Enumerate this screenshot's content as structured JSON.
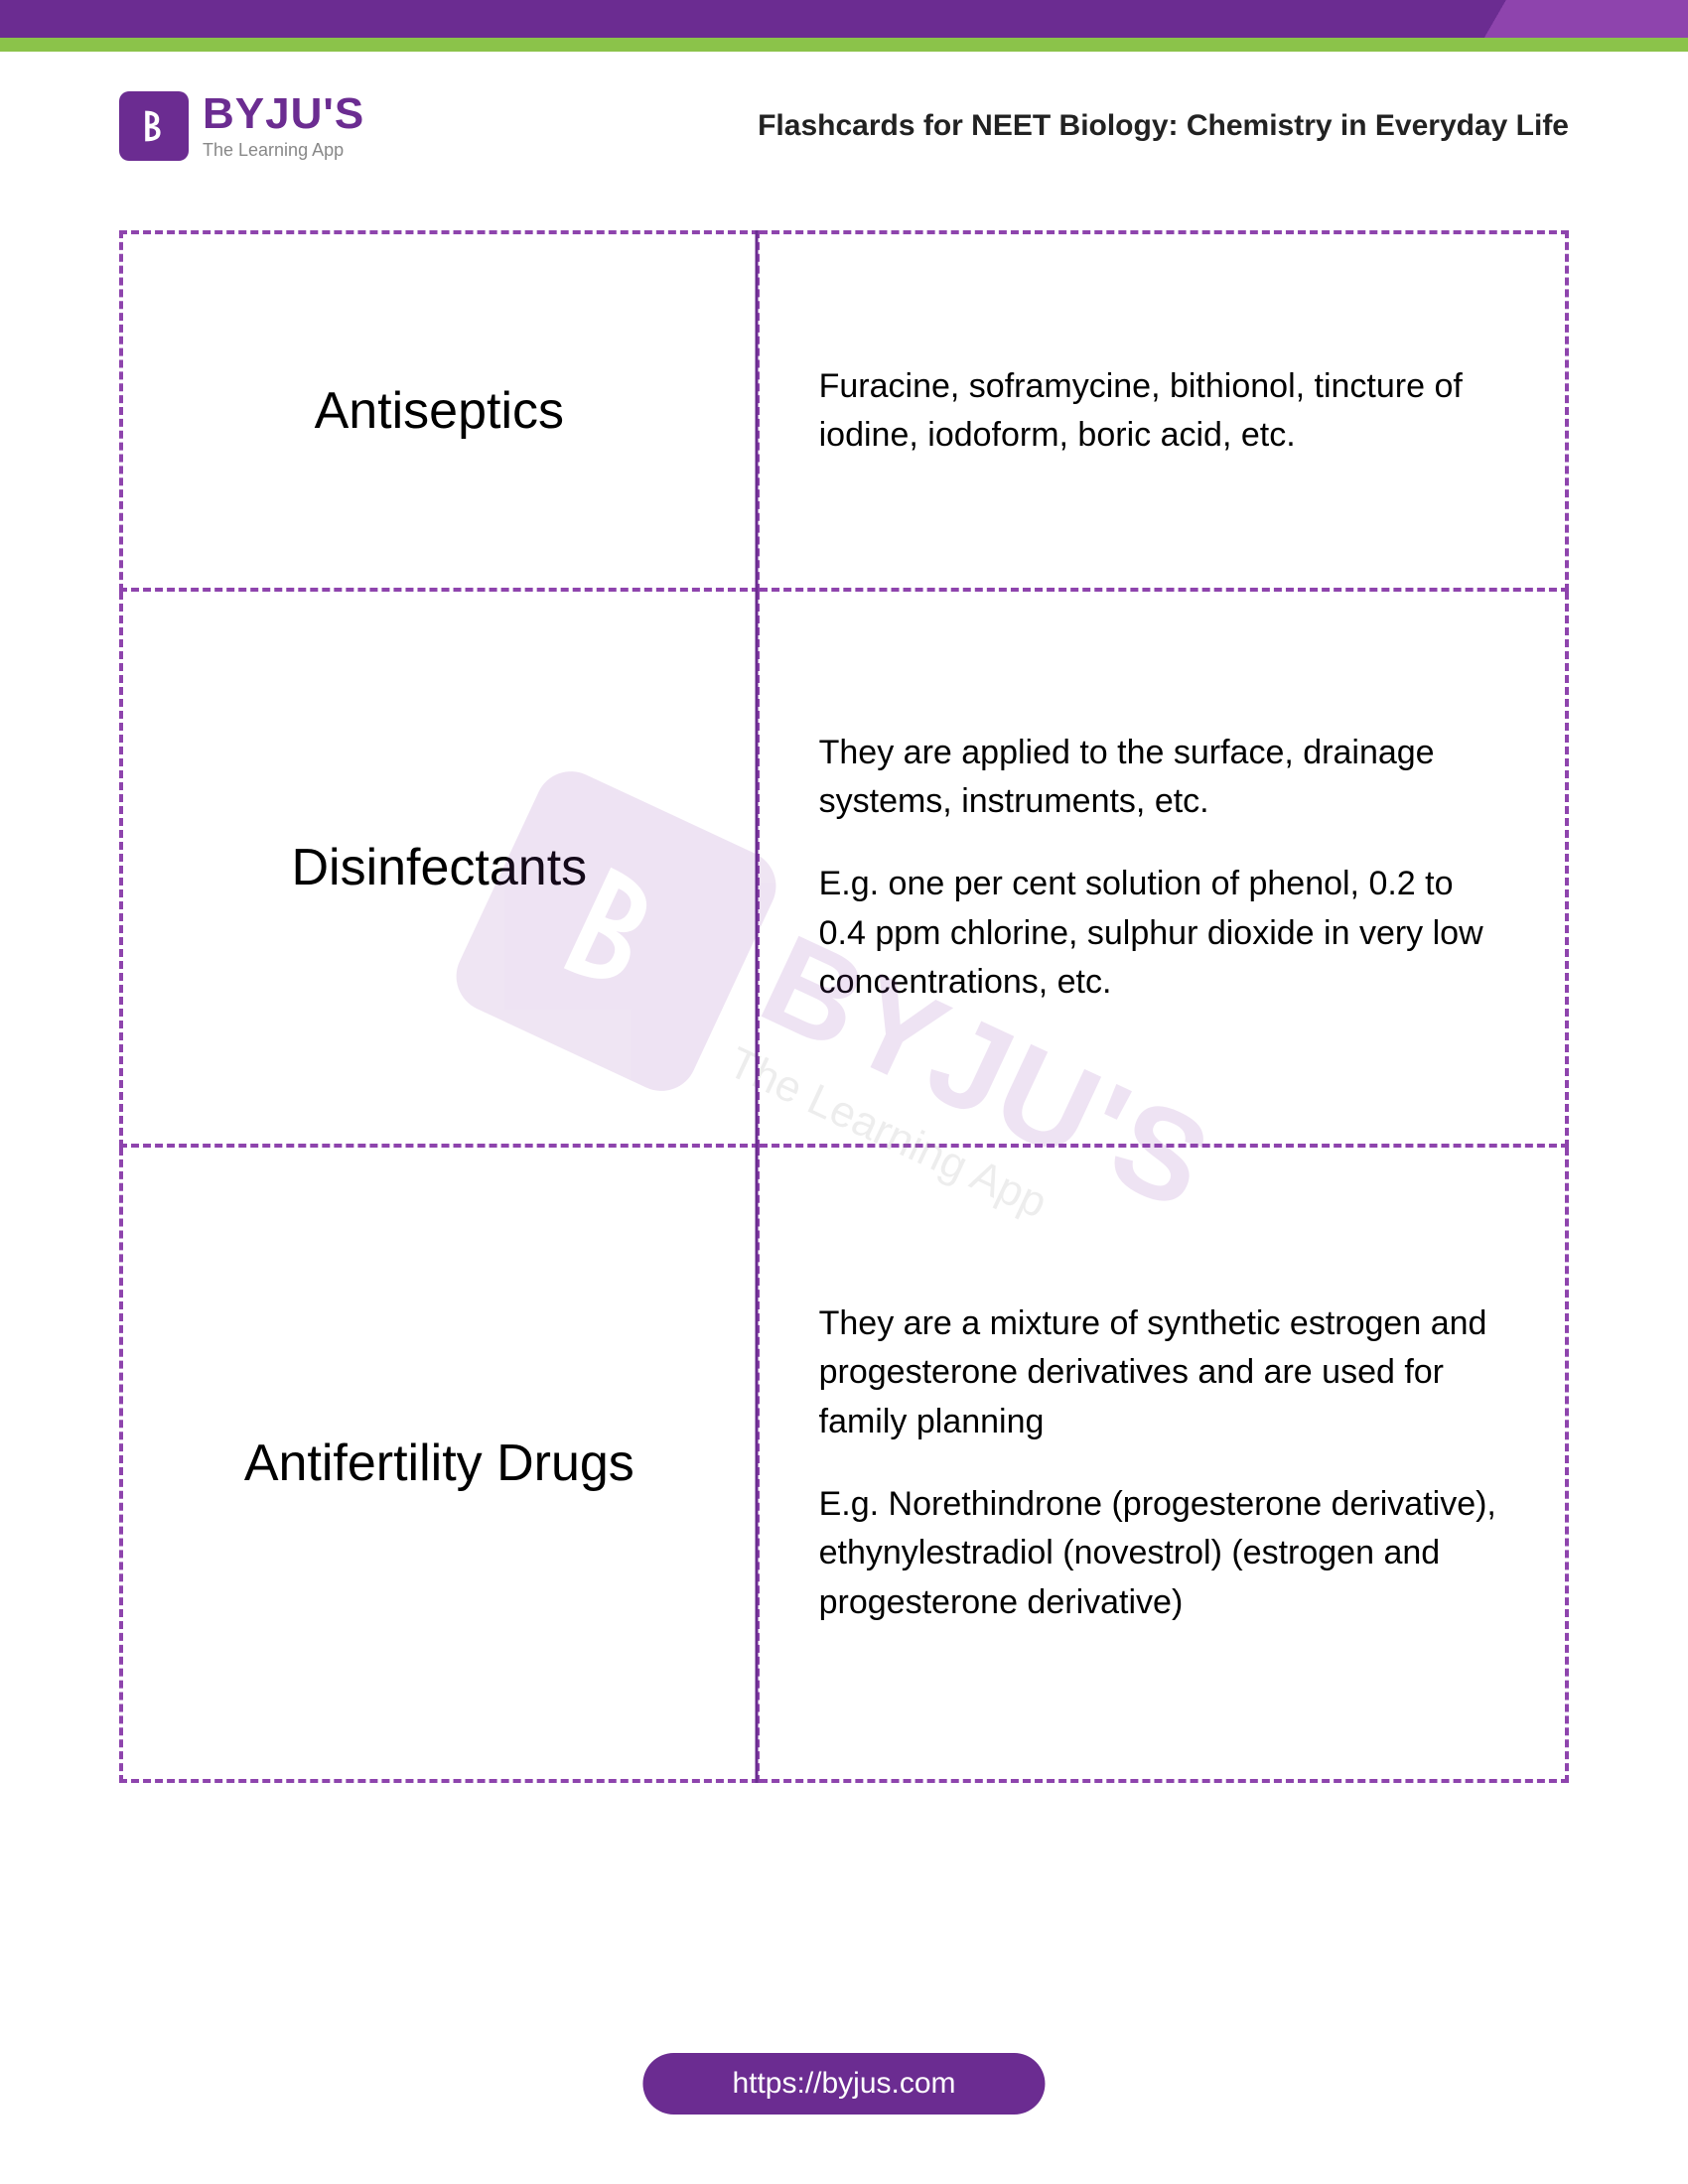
{
  "colors": {
    "brand_purple": "#6b2c91",
    "accent_purple": "#8e44ad",
    "green_bar": "#8bc34a",
    "text_black": "#000000",
    "tagline_gray": "#888888",
    "background": "#ffffff"
  },
  "typography": {
    "brand_fontsize": 44,
    "title_fontsize": 30,
    "term_fontsize": 52,
    "def_fontsize": 34,
    "footer_fontsize": 30
  },
  "logo": {
    "brand": "BYJU'S",
    "tagline": "The Learning App"
  },
  "title": "Flashcards for NEET Biology: Chemistry in Everyday Life",
  "table": {
    "border_style": "dashed",
    "border_color": "#8e44ad",
    "border_width": 4,
    "columns": [
      "term",
      "definition"
    ],
    "rows": [
      {
        "term": "Antiseptics",
        "definition": [
          "Furacine, soframycine, bithionol, tincture of iodine, iodoform, boric acid, etc."
        ]
      },
      {
        "term": "Disinfectants",
        "definition": [
          "They are applied to the surface, drainage systems, instruments, etc.",
          "E.g. one per cent solution of phenol, 0.2 to 0.4 ppm chlorine, sulphur dioxide in very low concentrations, etc."
        ]
      },
      {
        "term": "Antifertility Drugs",
        "definition": [
          "They are a mixture of synthetic estrogen and progesterone derivatives and are used for family planning",
          "E.g. Norethindrone (progesterone derivative), ethynylestradiol (novestrol) (estrogen and progesterone derivative)"
        ]
      }
    ]
  },
  "watermark": {
    "brand": "BYJU'S",
    "tagline": "The Learning App",
    "opacity": 0.14,
    "rotation_deg": 25
  },
  "footer": {
    "url": "https://byjus.com"
  }
}
